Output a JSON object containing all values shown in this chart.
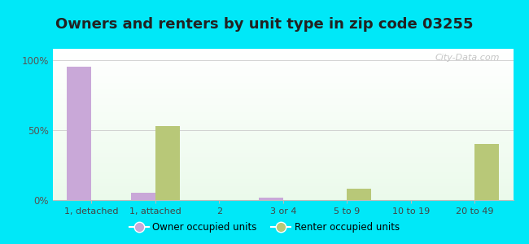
{
  "title": "Owners and renters by unit type in zip code 03255",
  "categories": [
    "1, detached",
    "1, attached",
    "2",
    "3 or 4",
    "5 to 9",
    "10 to 19",
    "20 to 49"
  ],
  "owner_values": [
    95,
    5,
    0,
    2,
    0,
    0,
    0
  ],
  "renter_values": [
    0,
    53,
    0,
    0,
    8,
    0,
    40
  ],
  "owner_color": "#c9a8d8",
  "renter_color": "#b8c878",
  "background_outer": "#00e8f8",
  "yticks": [
    0,
    50,
    100
  ],
  "ytick_labels": [
    "0%",
    "50%",
    "100%"
  ],
  "ylim": [
    0,
    108
  ],
  "bar_width": 0.38,
  "legend_owner": "Owner occupied units",
  "legend_renter": "Renter occupied units",
  "title_fontsize": 13,
  "watermark": "City-Data.com"
}
